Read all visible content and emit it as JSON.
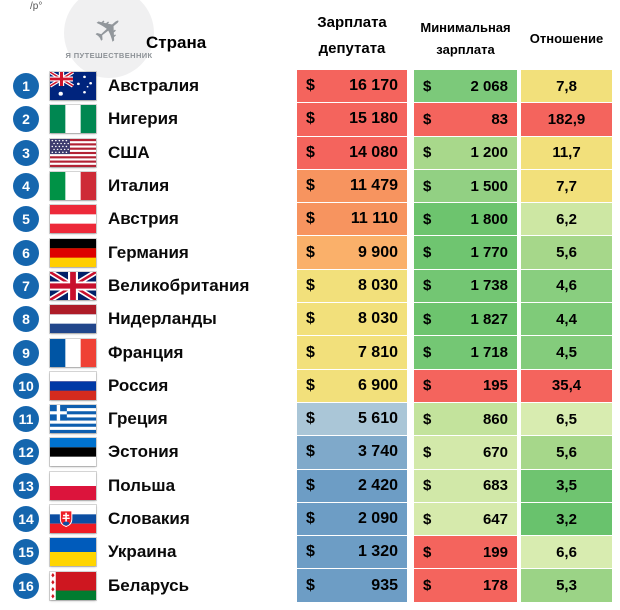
{
  "page": {
    "fragment": "/р°"
  },
  "logo": {
    "text": "Я ПУТЕШЕСТВЕННИК",
    "icon": "airplane-icon"
  },
  "header": {
    "country": "Страна",
    "salary_line1": "Зарплата",
    "salary_line2": "депутата",
    "min_line1": "Минимальная",
    "min_line2": "зарплата",
    "ratio": "Отношение"
  },
  "currency": "$",
  "badge_color": "#1566ae",
  "rows": [
    {
      "rank": "1",
      "country": "Австралия",
      "flag": "au",
      "salary": "16 170",
      "salary_bg": "#f4645d",
      "min": "2 068",
      "min_bg": "#7cc97a",
      "ratio": "7,8",
      "ratio_bg": "#f2e07b"
    },
    {
      "rank": "2",
      "country": "Нигерия",
      "flag": "ng",
      "salary": "15 180",
      "salary_bg": "#f4645d",
      "min": "83",
      "min_bg": "#f4645d",
      "ratio": "182,9",
      "ratio_bg": "#f4645d"
    },
    {
      "rank": "3",
      "country": "США",
      "flag": "us",
      "salary": "14 080",
      "salary_bg": "#f4645d",
      "min": "1 200",
      "min_bg": "#a8d88b",
      "ratio": "11,7",
      "ratio_bg": "#f2e07b"
    },
    {
      "rank": "4",
      "country": "Италия",
      "flag": "it",
      "salary": "11 479",
      "salary_bg": "#f7945f",
      "min": "1 500",
      "min_bg": "#92d083",
      "ratio": "7,7",
      "ratio_bg": "#f2e07b"
    },
    {
      "rank": "5",
      "country": "Австрия",
      "flag": "at",
      "salary": "11 110",
      "salary_bg": "#f7945f",
      "min": "1 800",
      "min_bg": "#6dc46e",
      "ratio": "6,2",
      "ratio_bg": "#cde7a3"
    },
    {
      "rank": "6",
      "country": "Германия",
      "flag": "de",
      "salary": "9 900",
      "salary_bg": "#fab06a",
      "min": "1 770",
      "min_bg": "#6fc570",
      "ratio": "5,6",
      "ratio_bg": "#a6d78a"
    },
    {
      "rank": "7",
      "country": "Великобритания",
      "flag": "gb",
      "salary": "8 030",
      "salary_bg": "#f2e07b",
      "min": "1 738",
      "min_bg": "#73c673",
      "ratio": "4,6",
      "ratio_bg": "#89ce7f"
    },
    {
      "rank": "8",
      "country": "Нидерланды",
      "flag": "nl",
      "salary": "8 030",
      "salary_bg": "#f2e07b",
      "min": "1 827",
      "min_bg": "#6dc46e",
      "ratio": "4,4",
      "ratio_bg": "#7fcb79"
    },
    {
      "rank": "9",
      "country": "Франция",
      "flag": "fr",
      "salary": "7 810",
      "salary_bg": "#f2e07b",
      "min": "1 718",
      "min_bg": "#74c774",
      "ratio": "4,5",
      "ratio_bg": "#84cc7c"
    },
    {
      "rank": "10",
      "country": "Россия",
      "flag": "ru",
      "salary": "6 900",
      "salary_bg": "#f2e07b",
      "min": "195",
      "min_bg": "#f4645d",
      "ratio": "35,4",
      "ratio_bg": "#f4645d"
    },
    {
      "rank": "11",
      "country": "Греция",
      "flag": "gr",
      "salary": "5 610",
      "salary_bg": "#aac6d7",
      "min": "860",
      "min_bg": "#c3e39c",
      "ratio": "6,5",
      "ratio_bg": "#d8ecb0"
    },
    {
      "rank": "12",
      "country": "Эстония",
      "flag": "ee",
      "salary": "3 740",
      "salary_bg": "#7fa9ca",
      "min": "670",
      "min_bg": "#d3e9aa",
      "ratio": "5,6",
      "ratio_bg": "#a6d78a"
    },
    {
      "rank": "13",
      "country": "Польша",
      "flag": "pl",
      "salary": "2 420",
      "salary_bg": "#6d9dc5",
      "min": "683",
      "min_bg": "#d1e8a8",
      "ratio": "3,5",
      "ratio_bg": "#6fc470"
    },
    {
      "rank": "14",
      "country": "Словакия",
      "flag": "sk",
      "salary": "2 090",
      "salary_bg": "#6d9dc5",
      "min": "647",
      "min_bg": "#d6eaac",
      "ratio": "3,2",
      "ratio_bg": "#69c26d"
    },
    {
      "rank": "15",
      "country": "Украина",
      "flag": "ua",
      "salary": "1 320",
      "salary_bg": "#6d9dc5",
      "min": "199",
      "min_bg": "#f4645d",
      "ratio": "6,6",
      "ratio_bg": "#d8ecb0"
    },
    {
      "rank": "16",
      "country": "Беларусь",
      "flag": "by",
      "salary": "935",
      "salary_bg": "#6d9dc5",
      "min": "178",
      "min_bg": "#f4645d",
      "ratio": "5,3",
      "ratio_bg": "#9bd386"
    }
  ],
  "chart_data": {
    "type": "table",
    "columns": [
      "Страна",
      "Зарплата депутата ($)",
      "Минимальная зарплата ($)",
      "Отношение"
    ],
    "rows": [
      [
        "Австралия",
        16170,
        2068,
        7.8
      ],
      [
        "Нигерия",
        15180,
        83,
        182.9
      ],
      [
        "США",
        14080,
        1200,
        11.7
      ],
      [
        "Италия",
        11479,
        1500,
        7.7
      ],
      [
        "Австрия",
        11110,
        1800,
        6.2
      ],
      [
        "Германия",
        9900,
        1770,
        5.6
      ],
      [
        "Великобритания",
        8030,
        1738,
        4.6
      ],
      [
        "Нидерланды",
        8030,
        1827,
        4.4
      ],
      [
        "Франция",
        7810,
        1718,
        4.5
      ],
      [
        "Россия",
        6900,
        195,
        35.4
      ],
      [
        "Греция",
        5610,
        860,
        6.5
      ],
      [
        "Эстония",
        3740,
        670,
        5.6
      ],
      [
        "Польша",
        2420,
        683,
        3.5
      ],
      [
        "Словакия",
        2090,
        647,
        3.2
      ],
      [
        "Украина",
        1320,
        199,
        6.6
      ],
      [
        "Беларусь",
        935,
        178,
        5.3
      ]
    ],
    "layout": {
      "heatmap_cells": true,
      "grid": false,
      "legend": "none"
    }
  }
}
